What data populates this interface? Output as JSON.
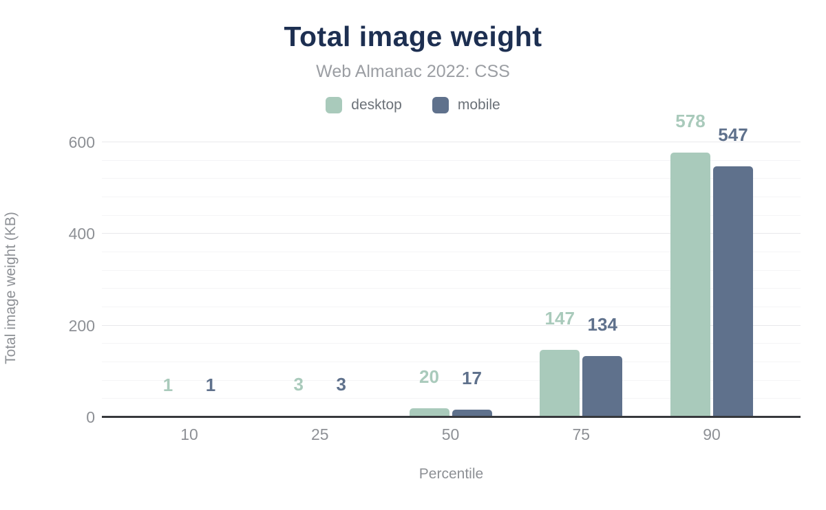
{
  "header": {
    "title": "Total image weight",
    "subtitle": "Web Almanac 2022: CSS"
  },
  "chart_data": {
    "type": "bar",
    "title": "Total image weight",
    "subtitle": "Web Almanac 2022: CSS",
    "categories": [
      "10",
      "25",
      "50",
      "75",
      "90"
    ],
    "series": [
      {
        "name": "desktop",
        "color": "#a9cabb",
        "values": [
          1,
          3,
          20,
          147,
          578
        ]
      },
      {
        "name": "mobile",
        "color": "#5f718c",
        "values": [
          1,
          3,
          17,
          134,
          547
        ]
      }
    ],
    "xlabel": "Percentile",
    "ylabel": "Total image weight (KB)",
    "ylim": [
      0,
      600
    ],
    "yticks": [
      0,
      200,
      400,
      600
    ],
    "minor_grid_step": 40,
    "grid": true,
    "legend_position": "top",
    "data_labels_shown": true
  },
  "colors": {
    "title": "#1d2f51",
    "subtitle": "#9b9ea3",
    "tick_labels": "#8d9095",
    "legend_text": "#6b7178",
    "grid_minor": "#f4f4f6",
    "grid_major": "#e8e8eb",
    "axis_line": "#36383c",
    "desktop": "#a9cabb",
    "mobile": "#5f718c"
  }
}
